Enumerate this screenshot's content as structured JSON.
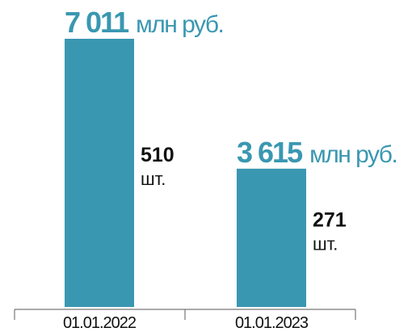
{
  "chart_data": {
    "type": "bar",
    "categories": [
      "01.01.2022",
      "01.01.2023"
    ],
    "values": [
      7011,
      3615
    ],
    "value_labels": [
      "7 011",
      "3 615"
    ],
    "unit": "млн руб.",
    "counts": [
      510,
      271
    ],
    "count_unit": "шт.",
    "color": "#3a97b1"
  }
}
